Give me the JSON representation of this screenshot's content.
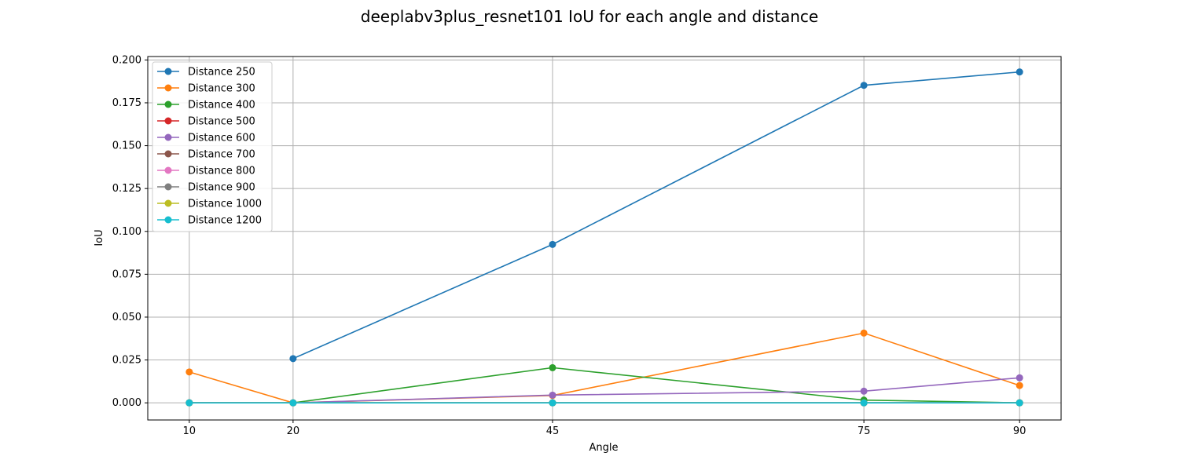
{
  "chart_data": {
    "type": "line",
    "title": "deeplabv3plus_resnet101 IoU for each angle and distance",
    "xlabel": "Angle",
    "ylabel": "IoU",
    "x": [
      10,
      20,
      45,
      75,
      90
    ],
    "x_ticks": [
      "10",
      "20",
      "45",
      "75",
      "90"
    ],
    "xlim": [
      6,
      94
    ],
    "ylim": [
      -0.01,
      0.202
    ],
    "y_ticks": [
      0.0,
      0.025,
      0.05,
      0.075,
      0.1,
      0.125,
      0.15,
      0.175,
      0.2
    ],
    "y_tick_labels": [
      "0.000",
      "0.025",
      "0.050",
      "0.075",
      "0.100",
      "0.125",
      "0.150",
      "0.175",
      "0.200"
    ],
    "grid": true,
    "legend_position": "top-left",
    "series": [
      {
        "name": "Distance 250",
        "color": "#1f77b4",
        "values": [
          null,
          0.0258,
          0.0924,
          0.1852,
          0.193
        ]
      },
      {
        "name": "Distance 300",
        "color": "#ff7f0e",
        "values": [
          0.018,
          0.0,
          0.0043,
          0.0407,
          0.0101
        ]
      },
      {
        "name": "Distance 400",
        "color": "#2ca02c",
        "values": [
          0.0,
          0.0,
          0.0205,
          0.0016,
          0.0
        ]
      },
      {
        "name": "Distance 500",
        "color": "#d62728",
        "values": [
          0.0,
          0.0,
          0.0,
          0.0,
          0.0
        ]
      },
      {
        "name": "Distance 600",
        "color": "#9467bd",
        "values": [
          0.0,
          0.0,
          0.0045,
          0.0068,
          0.0146
        ]
      },
      {
        "name": "Distance 700",
        "color": "#8c564b",
        "values": [
          0.0,
          0.0,
          0.0,
          0.0,
          0.0
        ]
      },
      {
        "name": "Distance 800",
        "color": "#e377c2",
        "values": [
          0.0,
          0.0,
          0.0,
          0.0,
          0.0
        ]
      },
      {
        "name": "Distance 900",
        "color": "#7f7f7f",
        "values": [
          0.0,
          0.0,
          0.0,
          0.0,
          0.0
        ]
      },
      {
        "name": "Distance 1000",
        "color": "#bcbd22",
        "values": [
          0.0,
          0.0,
          0.0,
          0.0,
          0.0
        ]
      },
      {
        "name": "Distance 1200",
        "color": "#17becf",
        "values": [
          0.0,
          0.0,
          0.0,
          0.0,
          0.0
        ]
      }
    ]
  }
}
